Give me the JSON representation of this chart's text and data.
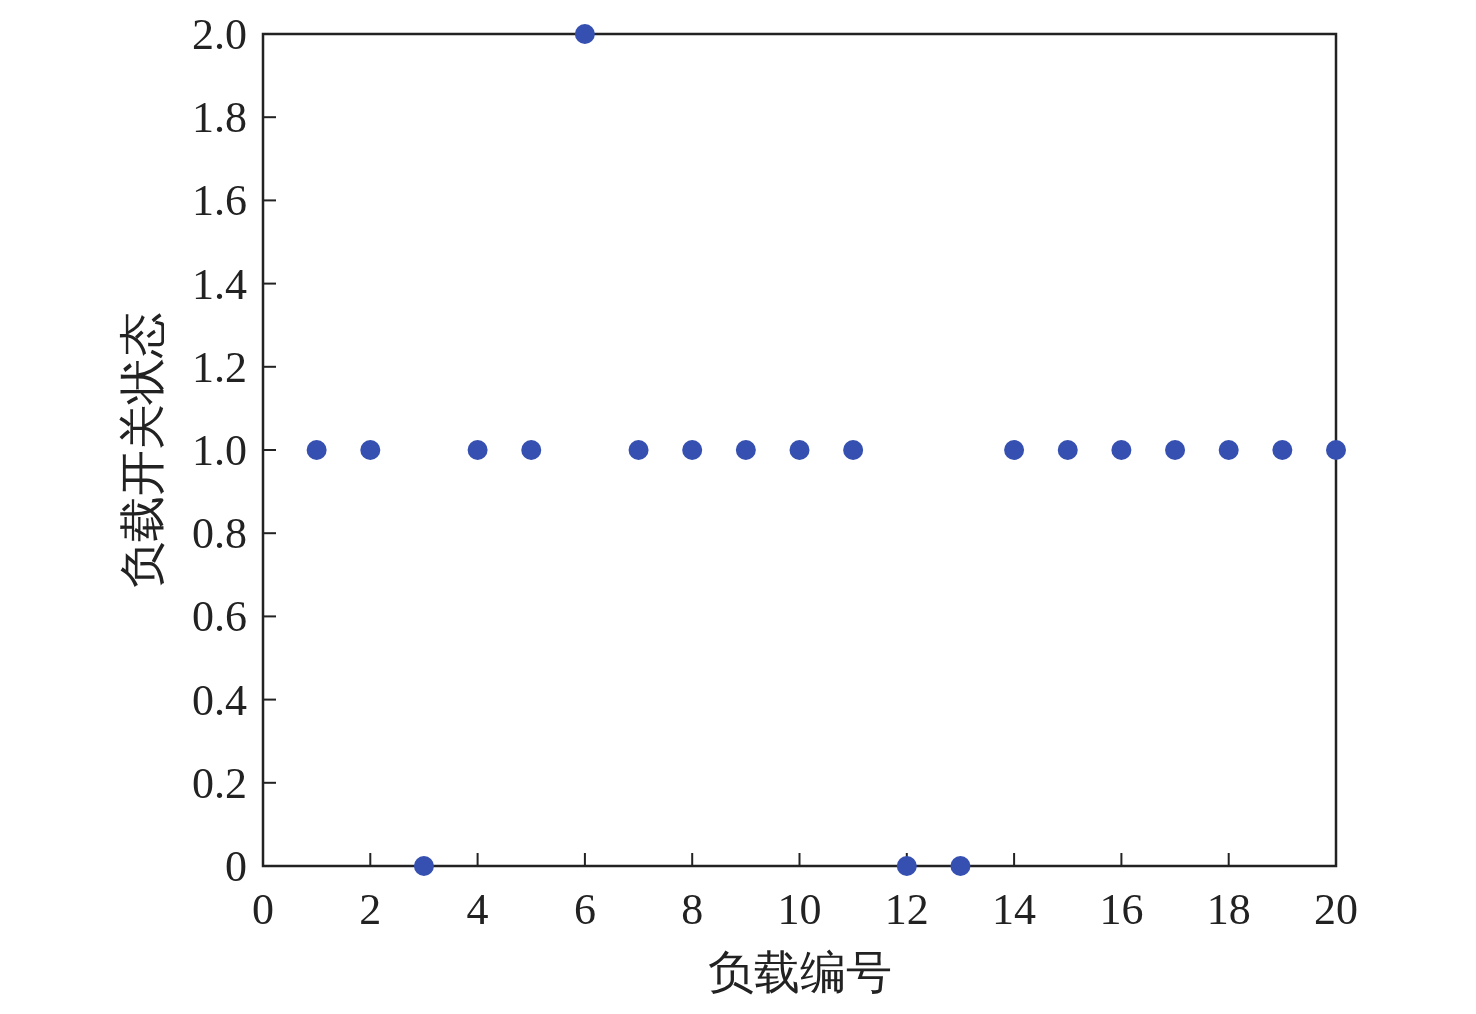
{
  "chart_data": {
    "type": "scatter",
    "xlabel": "负载编号",
    "ylabel": "负载开关状态",
    "x": [
      1,
      2,
      3,
      4,
      5,
      6,
      7,
      8,
      9,
      10,
      11,
      12,
      13,
      14,
      15,
      16,
      17,
      18,
      19,
      20
    ],
    "values": [
      1,
      1,
      0,
      1,
      1,
      2,
      1,
      1,
      1,
      1,
      1,
      0,
      0,
      1,
      1,
      1,
      1,
      1,
      1,
      1
    ],
    "color": "#3550b0",
    "marker": "circle",
    "grid": false,
    "xlim": [
      0,
      20
    ],
    "xticks": [
      0,
      2,
      4,
      6,
      8,
      10,
      12,
      14,
      16,
      18,
      20
    ],
    "ylim": [
      0,
      2
    ],
    "yticks": [
      0,
      0.2,
      0.4,
      0.6,
      0.8,
      {
        "value": 1,
        "label": "1.0"
      },
      1.2,
      1.4,
      1.6,
      1.8,
      {
        "value": 2,
        "label": "2.0"
      }
    ]
  }
}
